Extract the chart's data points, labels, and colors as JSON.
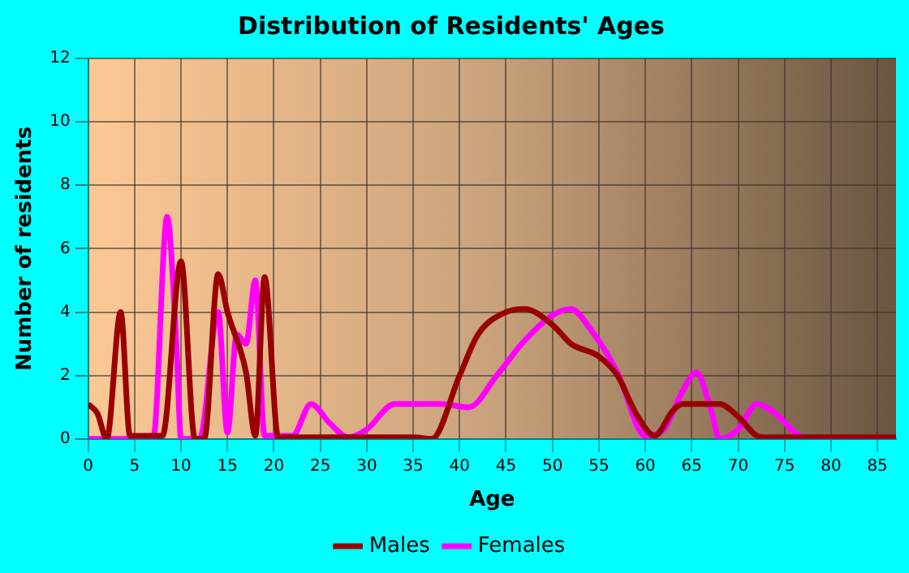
{
  "chart_data": {
    "type": "line",
    "title": "Distribution of Residents' Ages",
    "xlabel": "Age",
    "ylabel": "Number of residents",
    "xlim": [
      0,
      87
    ],
    "xticks": [
      0,
      5,
      10,
      15,
      20,
      25,
      30,
      35,
      40,
      45,
      50,
      55,
      60,
      65,
      70,
      75,
      80,
      85
    ],
    "ylim": [
      0,
      12
    ],
    "yticks": [
      0,
      2,
      4,
      6,
      8,
      10,
      12
    ],
    "grid": true,
    "legend": "bottom",
    "marker": "none",
    "line_style": "solid",
    "series": [
      {
        "name": "Males",
        "color": "#990000",
        "x": [
          0,
          1,
          2,
          3.5,
          4.5,
          8,
          10,
          11.5,
          12.5,
          14,
          15,
          17,
          18,
          19,
          20.5,
          21,
          35,
          37,
          40,
          42,
          45,
          47,
          50,
          52,
          55,
          57,
          59,
          61,
          63,
          64,
          66,
          68,
          70,
          72,
          73,
          87
        ],
        "values": [
          1.1,
          0.8,
          0,
          4,
          0.1,
          0.1,
          5.6,
          0,
          0,
          5.2,
          4,
          2.1,
          0.1,
          5.1,
          0,
          0.05,
          0.05,
          0,
          2,
          3.3,
          4,
          4.1,
          3.6,
          3,
          2.6,
          2,
          0.8,
          0.1,
          0.9,
          1.1,
          1.1,
          1.1,
          0.7,
          0.1,
          0.05,
          0.05
        ]
      },
      {
        "name": "Females",
        "color": "#ff00ff",
        "x": [
          0,
          7,
          8.5,
          9.5,
          10,
          12,
          14,
          15,
          16,
          17,
          18,
          19,
          22,
          24,
          26,
          28,
          30,
          33,
          38,
          41,
          44,
          47,
          50,
          52,
          54,
          57,
          60,
          62,
          64,
          65.5,
          67,
          68,
          70,
          72,
          74,
          77,
          80,
          87
        ],
        "values": [
          0,
          0,
          7,
          3,
          0,
          0,
          4,
          0.2,
          3.3,
          3,
          5,
          0.1,
          0.1,
          1.1,
          0.5,
          0.05,
          0.3,
          1.1,
          1.1,
          1,
          2,
          3.1,
          3.9,
          4.1,
          3.5,
          2.1,
          0.1,
          0.3,
          1.5,
          2.1,
          1,
          0,
          0.3,
          1.1,
          0.8,
          0.05,
          0,
          0
        ]
      }
    ]
  }
}
